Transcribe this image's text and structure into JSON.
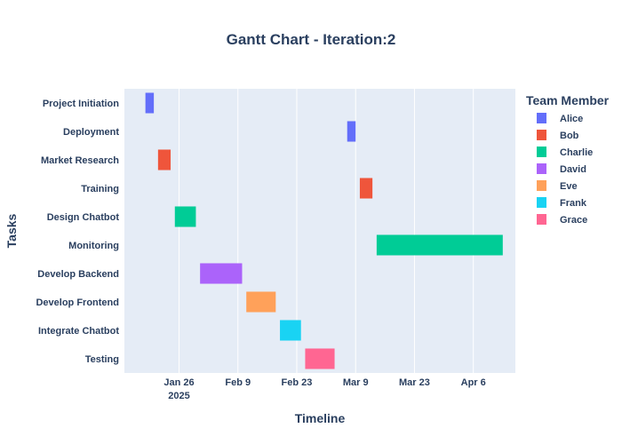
{
  "chart_data": {
    "type": "gantt",
    "title": "Gantt Chart - Iteration:2",
    "xlabel": "Timeline",
    "ylabel": "Tasks",
    "xlim": [
      "2025-01-13",
      "2025-04-16"
    ],
    "x_ticks": [
      {
        "date": "2025-01-26",
        "label": "Jan 26",
        "sublabel": "2025"
      },
      {
        "date": "2025-02-09",
        "label": "Feb 9",
        "sublabel": ""
      },
      {
        "date": "2025-02-23",
        "label": "Feb 23",
        "sublabel": ""
      },
      {
        "date": "2025-03-09",
        "label": "Mar 9",
        "sublabel": ""
      },
      {
        "date": "2025-03-23",
        "label": "Mar 23",
        "sublabel": ""
      },
      {
        "date": "2025-04-06",
        "label": "Apr 6",
        "sublabel": ""
      }
    ],
    "tasks": [
      {
        "task": "Project Initiation",
        "start": "2025-01-18",
        "end": "2025-01-20",
        "member": "Alice"
      },
      {
        "task": "Deployment",
        "start": "2025-03-07",
        "end": "2025-03-09",
        "member": "Alice"
      },
      {
        "task": "Market Research",
        "start": "2025-01-21",
        "end": "2025-01-24",
        "member": "Bob"
      },
      {
        "task": "Training",
        "start": "2025-03-10",
        "end": "2025-03-13",
        "member": "Bob"
      },
      {
        "task": "Design Chatbot",
        "start": "2025-01-25",
        "end": "2025-01-30",
        "member": "Charlie"
      },
      {
        "task": "Monitoring",
        "start": "2025-03-14",
        "end": "2025-04-13",
        "member": "Charlie"
      },
      {
        "task": "Develop Backend",
        "start": "2025-01-31",
        "end": "2025-02-10",
        "member": "David"
      },
      {
        "task": "Develop Frontend",
        "start": "2025-02-11",
        "end": "2025-02-18",
        "member": "Eve"
      },
      {
        "task": "Integrate Chatbot",
        "start": "2025-02-19",
        "end": "2025-02-24",
        "member": "Frank"
      },
      {
        "task": "Testing",
        "start": "2025-02-25",
        "end": "2025-03-04",
        "member": "Grace"
      }
    ],
    "legend": {
      "title": "Team Member",
      "position": "right",
      "entries": [
        {
          "name": "Alice",
          "color": "#636efa"
        },
        {
          "name": "Bob",
          "color": "#ef553b"
        },
        {
          "name": "Charlie",
          "color": "#00cc96"
        },
        {
          "name": "David",
          "color": "#ab63fa"
        },
        {
          "name": "Eve",
          "color": "#ffa15a"
        },
        {
          "name": "Frank",
          "color": "#19d3f3"
        },
        {
          "name": "Grace",
          "color": "#ff6692"
        }
      ]
    },
    "grid": true,
    "plot_bg": "#e5ecf6",
    "grid_color": "#ffffff",
    "text_color": "#2a3f5f"
  }
}
